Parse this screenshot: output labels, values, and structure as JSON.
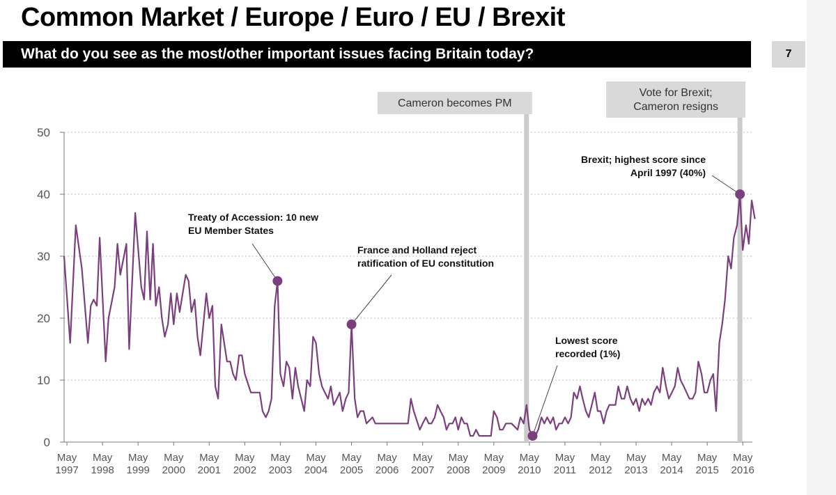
{
  "header": {
    "title": "Common Market / Europe / Euro / EU / Brexit",
    "subtitle": "What do you see as the most/other important issues facing Britain today?",
    "page_number": "7"
  },
  "colors": {
    "series": "#7b3f7e",
    "marker": "#7b3f7e",
    "event_line": "#cccccc",
    "event_box": "#d9d9d9"
  },
  "chart_data": {
    "type": "line",
    "title": "What do you see as the most/other important issues facing Britain today?",
    "xlabel": "",
    "ylabel": "",
    "ylim": [
      0,
      50
    ],
    "yticks": [
      "0",
      "10",
      "20",
      "30",
      "40",
      "50"
    ],
    "x_start": 1997.25,
    "x_end": 2016.6,
    "x_tick_labels": [
      {
        "x": 1997.33,
        "month": "May",
        "year": "1997"
      },
      {
        "x": 1998.33,
        "month": "May",
        "year": "1998"
      },
      {
        "x": 1999.33,
        "month": "May",
        "year": "1999"
      },
      {
        "x": 2000.33,
        "month": "May",
        "year": "2000"
      },
      {
        "x": 2001.33,
        "month": "May",
        "year": "2001"
      },
      {
        "x": 2002.33,
        "month": "May",
        "year": "2002"
      },
      {
        "x": 2003.33,
        "month": "May",
        "year": "2003"
      },
      {
        "x": 2004.33,
        "month": "May",
        "year": "2004"
      },
      {
        "x": 2005.33,
        "month": "May",
        "year": "2005"
      },
      {
        "x": 2006.33,
        "month": "May",
        "year": "2006"
      },
      {
        "x": 2007.33,
        "month": "May",
        "year": "2007"
      },
      {
        "x": 2008.33,
        "month": "May",
        "year": "2008"
      },
      {
        "x": 2009.33,
        "month": "May",
        "year": "2009"
      },
      {
        "x": 2010.33,
        "month": "May",
        "year": "2010"
      },
      {
        "x": 2011.33,
        "month": "May",
        "year": "2011"
      },
      {
        "x": 2012.33,
        "month": "May",
        "year": "2012"
      },
      {
        "x": 2013.33,
        "month": "May",
        "year": "2013"
      },
      {
        "x": 2014.33,
        "month": "May",
        "year": "2014"
      },
      {
        "x": 2015.33,
        "month": "May",
        "year": "2015"
      },
      {
        "x": 2016.33,
        "month": "May",
        "year": "2016"
      }
    ],
    "series": [
      {
        "name": "Common Market / Europe / Euro / EU / Brexit",
        "points": [
          [
            1997.25,
            30
          ],
          [
            1997.42,
            16
          ],
          [
            1997.58,
            35
          ],
          [
            1997.75,
            28
          ],
          [
            1997.92,
            16
          ],
          [
            1998.0,
            22
          ],
          [
            1998.08,
            23
          ],
          [
            1998.17,
            22
          ],
          [
            1998.25,
            33
          ],
          [
            1998.42,
            13
          ],
          [
            1998.5,
            20
          ],
          [
            1998.67,
            25
          ],
          [
            1998.75,
            32
          ],
          [
            1998.83,
            27
          ],
          [
            1999.0,
            32
          ],
          [
            1999.08,
            15
          ],
          [
            1999.25,
            37
          ],
          [
            1999.42,
            25
          ],
          [
            1999.5,
            23
          ],
          [
            1999.58,
            34
          ],
          [
            1999.67,
            23
          ],
          [
            1999.75,
            32
          ],
          [
            1999.83,
            22
          ],
          [
            1999.92,
            25
          ],
          [
            2000.0,
            20
          ],
          [
            2000.08,
            17
          ],
          [
            2000.17,
            19
          ],
          [
            2000.25,
            24
          ],
          [
            2000.33,
            19
          ],
          [
            2000.42,
            24
          ],
          [
            2000.5,
            21
          ],
          [
            2000.67,
            27
          ],
          [
            2000.75,
            26
          ],
          [
            2000.83,
            21
          ],
          [
            2000.92,
            23
          ],
          [
            2001.0,
            17
          ],
          [
            2001.08,
            14
          ],
          [
            2001.25,
            24
          ],
          [
            2001.33,
            20
          ],
          [
            2001.42,
            22
          ],
          [
            2001.5,
            9
          ],
          [
            2001.58,
            7
          ],
          [
            2001.67,
            19
          ],
          [
            2001.75,
            16
          ],
          [
            2001.83,
            13
          ],
          [
            2001.92,
            13
          ],
          [
            2002.0,
            11
          ],
          [
            2002.08,
            10
          ],
          [
            2002.17,
            14
          ],
          [
            2002.25,
            14
          ],
          [
            2002.33,
            11
          ],
          [
            2002.5,
            8
          ],
          [
            2002.58,
            8
          ],
          [
            2002.67,
            8
          ],
          [
            2002.75,
            8
          ],
          [
            2002.83,
            5
          ],
          [
            2002.92,
            4
          ],
          [
            2003.0,
            5
          ],
          [
            2003.08,
            7
          ],
          [
            2003.17,
            22
          ],
          [
            2003.25,
            26
          ],
          [
            2003.33,
            11
          ],
          [
            2003.42,
            9
          ],
          [
            2003.5,
            13
          ],
          [
            2003.58,
            12
          ],
          [
            2003.67,
            7
          ],
          [
            2003.75,
            12
          ],
          [
            2003.83,
            9
          ],
          [
            2004.0,
            5
          ],
          [
            2004.08,
            10
          ],
          [
            2004.17,
            9
          ],
          [
            2004.25,
            17
          ],
          [
            2004.33,
            16
          ],
          [
            2004.42,
            11
          ],
          [
            2004.5,
            9
          ],
          [
            2004.58,
            8
          ],
          [
            2004.67,
            7
          ],
          [
            2004.75,
            9
          ],
          [
            2004.83,
            6
          ],
          [
            2004.92,
            7
          ],
          [
            2005.0,
            8
          ],
          [
            2005.08,
            5
          ],
          [
            2005.17,
            7
          ],
          [
            2005.25,
            8
          ],
          [
            2005.33,
            19
          ],
          [
            2005.42,
            7
          ],
          [
            2005.5,
            4
          ],
          [
            2005.58,
            5
          ],
          [
            2005.67,
            5
          ],
          [
            2005.75,
            3
          ],
          [
            2005.92,
            4
          ],
          [
            2006.0,
            3
          ],
          [
            2006.25,
            3
          ],
          [
            2006.5,
            3
          ],
          [
            2006.75,
            3
          ],
          [
            2006.92,
            3
          ],
          [
            2007.0,
            7
          ],
          [
            2007.08,
            5
          ],
          [
            2007.25,
            2
          ],
          [
            2007.33,
            3
          ],
          [
            2007.42,
            4
          ],
          [
            2007.5,
            3
          ],
          [
            2007.58,
            3
          ],
          [
            2007.67,
            4
          ],
          [
            2007.75,
            6
          ],
          [
            2007.83,
            5
          ],
          [
            2007.92,
            4
          ],
          [
            2008.0,
            2
          ],
          [
            2008.08,
            3
          ],
          [
            2008.17,
            3
          ],
          [
            2008.25,
            4
          ],
          [
            2008.33,
            2
          ],
          [
            2008.42,
            4
          ],
          [
            2008.5,
            3
          ],
          [
            2008.58,
            3
          ],
          [
            2008.67,
            1
          ],
          [
            2008.75,
            1
          ],
          [
            2008.83,
            2
          ],
          [
            2008.92,
            1
          ],
          [
            2009.0,
            1
          ],
          [
            2009.17,
            1
          ],
          [
            2009.25,
            1
          ],
          [
            2009.33,
            5
          ],
          [
            2009.42,
            4
          ],
          [
            2009.5,
            2
          ],
          [
            2009.58,
            2
          ],
          [
            2009.67,
            3
          ],
          [
            2009.75,
            3
          ],
          [
            2009.83,
            3
          ],
          [
            2010.0,
            2
          ],
          [
            2010.08,
            4
          ],
          [
            2010.17,
            3
          ],
          [
            2010.25,
            6
          ],
          [
            2010.33,
            2
          ],
          [
            2010.42,
            1
          ],
          [
            2010.5,
            1
          ],
          [
            2010.58,
            2
          ],
          [
            2010.67,
            4
          ],
          [
            2010.75,
            3
          ],
          [
            2010.83,
            4
          ],
          [
            2010.92,
            3
          ],
          [
            2011.0,
            4
          ],
          [
            2011.08,
            2
          ],
          [
            2011.17,
            3
          ],
          [
            2011.25,
            3
          ],
          [
            2011.33,
            4
          ],
          [
            2011.42,
            3
          ],
          [
            2011.5,
            4
          ],
          [
            2011.58,
            8
          ],
          [
            2011.67,
            7
          ],
          [
            2011.75,
            9
          ],
          [
            2011.83,
            7
          ],
          [
            2011.92,
            5
          ],
          [
            2012.0,
            4
          ],
          [
            2012.17,
            8
          ],
          [
            2012.25,
            5
          ],
          [
            2012.33,
            5
          ],
          [
            2012.42,
            3
          ],
          [
            2012.5,
            5
          ],
          [
            2012.58,
            6
          ],
          [
            2012.67,
            6
          ],
          [
            2012.75,
            6
          ],
          [
            2012.83,
            9
          ],
          [
            2012.92,
            7
          ],
          [
            2013.0,
            7
          ],
          [
            2013.08,
            9
          ],
          [
            2013.17,
            7
          ],
          [
            2013.25,
            6
          ],
          [
            2013.33,
            7
          ],
          [
            2013.42,
            5
          ],
          [
            2013.5,
            7
          ],
          [
            2013.58,
            6
          ],
          [
            2013.67,
            7
          ],
          [
            2013.75,
            6
          ],
          [
            2013.83,
            8
          ],
          [
            2013.92,
            9
          ],
          [
            2014.0,
            8
          ],
          [
            2014.08,
            12
          ],
          [
            2014.17,
            9
          ],
          [
            2014.25,
            7
          ],
          [
            2014.42,
            9
          ],
          [
            2014.5,
            12
          ],
          [
            2014.58,
            10
          ],
          [
            2014.67,
            9
          ],
          [
            2014.75,
            8
          ],
          [
            2014.83,
            7
          ],
          [
            2014.92,
            7
          ],
          [
            2015.0,
            8
          ],
          [
            2015.08,
            13
          ],
          [
            2015.17,
            11
          ],
          [
            2015.25,
            8
          ],
          [
            2015.33,
            8
          ],
          [
            2015.42,
            10
          ],
          [
            2015.5,
            11
          ],
          [
            2015.58,
            5
          ],
          [
            2015.67,
            16
          ],
          [
            2015.75,
            19
          ],
          [
            2015.83,
            23
          ],
          [
            2015.92,
            30
          ],
          [
            2016.0,
            28
          ],
          [
            2016.08,
            33
          ],
          [
            2016.17,
            35
          ],
          [
            2016.25,
            40
          ],
          [
            2016.33,
            31
          ],
          [
            2016.42,
            35
          ],
          [
            2016.5,
            32
          ],
          [
            2016.58,
            39
          ],
          [
            2016.67,
            36
          ]
        ]
      }
    ],
    "highlighted_points": [
      {
        "x": 2003.25,
        "y": 26,
        "label": "Treaty of Accession: 10 new EU Member States",
        "lines": [
          "Treaty of Accession: 10 new",
          "EU Member States"
        ]
      },
      {
        "x": 2005.33,
        "y": 19,
        "label": "France and Holland reject ratification of EU constitution",
        "lines": [
          "France and Holland reject",
          "ratification of  EU constitution"
        ]
      },
      {
        "x": 2010.42,
        "y": 1,
        "label": "Lowest score recorded (1%)",
        "lines": [
          "Lowest score",
          "recorded (1%)"
        ]
      },
      {
        "x": 2016.25,
        "y": 40,
        "label": "Brexit; highest score since April 1997 (40%)",
        "lines": [
          "Brexit; highest score since",
          "April 1997 (40%)"
        ]
      }
    ],
    "events": [
      {
        "x": 2010.25,
        "lines": [
          "Cameron becomes PM"
        ]
      },
      {
        "x": 2016.25,
        "lines": [
          "Vote for Brexit;",
          "Cameron resigns"
        ]
      }
    ],
    "grid": true
  }
}
